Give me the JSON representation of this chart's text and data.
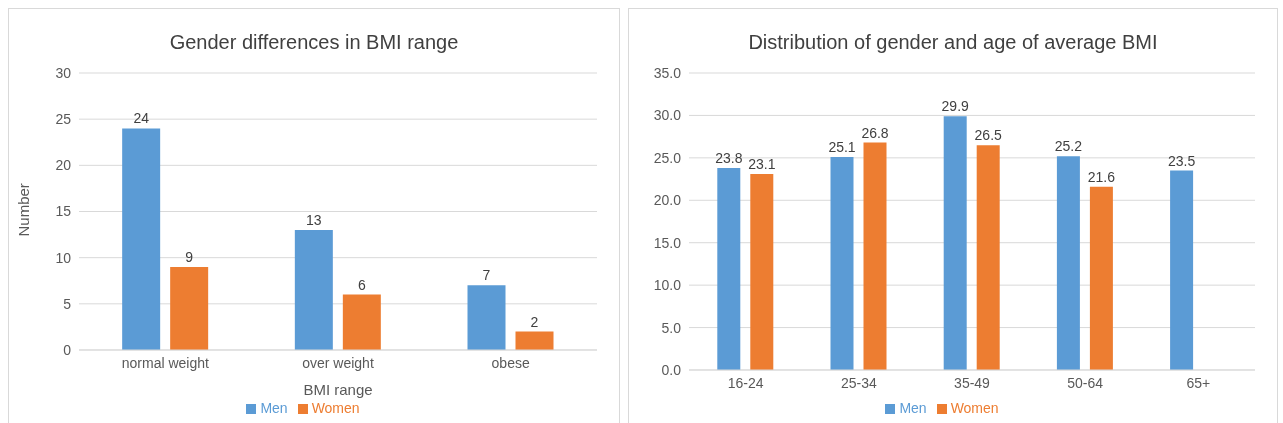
{
  "chart_data": [
    {
      "type": "bar",
      "title": "Gender differences in BMI range",
      "xlabel": "BMI range",
      "ylabel": "Number",
      "categories": [
        "normal weight",
        "over weight",
        "obese"
      ],
      "series": [
        {
          "name": "Men",
          "color": "#5b9bd5",
          "values": [
            24,
            13,
            7
          ]
        },
        {
          "name": "Women",
          "color": "#ed7d31",
          "values": [
            9,
            6,
            2
          ]
        }
      ],
      "ylim": [
        0,
        30
      ],
      "yticks": [
        0,
        5,
        10,
        15,
        20,
        25,
        30
      ],
      "grid": "y",
      "legend": "bottom",
      "data_labels": true
    },
    {
      "type": "bar",
      "title": "Distribution of gender and age of average BMI",
      "categories": [
        "16-24",
        "25-34",
        "35-49",
        "50-64",
        "65+"
      ],
      "series": [
        {
          "name": "Men",
          "color": "#5b9bd5",
          "values": [
            23.8,
            25.1,
            29.9,
            25.2,
            23.5
          ]
        },
        {
          "name": "Women",
          "color": "#ed7d31",
          "values": [
            23.1,
            26.8,
            26.5,
            21.6,
            null
          ]
        }
      ],
      "ylim": [
        0,
        35
      ],
      "yticks": [
        {
          "value": 0,
          "label": "0.0"
        },
        {
          "value": 5,
          "label": "5.0"
        },
        {
          "value": 10,
          "label": "10.0"
        },
        {
          "value": 15,
          "label": "15.0"
        },
        {
          "value": 20,
          "label": "20.0"
        },
        {
          "value": 25,
          "label": "25.0"
        },
        {
          "value": 30,
          "label": "30.0"
        },
        {
          "value": 35,
          "label": "35.0"
        }
      ],
      "grid": "y",
      "legend": "bottom",
      "data_labels": true
    }
  ]
}
